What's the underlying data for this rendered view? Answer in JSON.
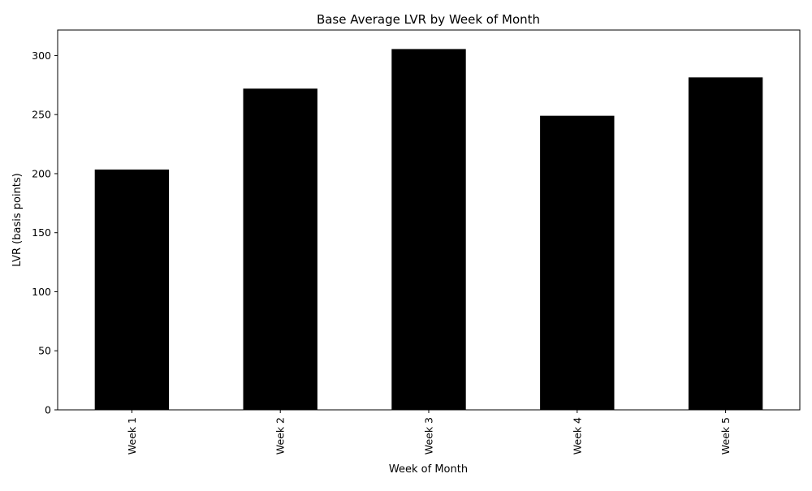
{
  "chart_data": {
    "type": "bar",
    "title": "Base Average LVR by Week of Month",
    "xlabel": "Week of Month",
    "ylabel": "LVR (basis points)",
    "categories": [
      "Week 1",
      "Week 2",
      "Week 3",
      "Week 4",
      "Week 5"
    ],
    "values": [
      203.5,
      272.0,
      305.5,
      249.0,
      281.5
    ],
    "ylim": [
      0,
      321.6
    ],
    "yticks": [
      0,
      50,
      100,
      150,
      200,
      250,
      300
    ],
    "bar_color": "#000000",
    "grid": false,
    "legend": "none"
  }
}
